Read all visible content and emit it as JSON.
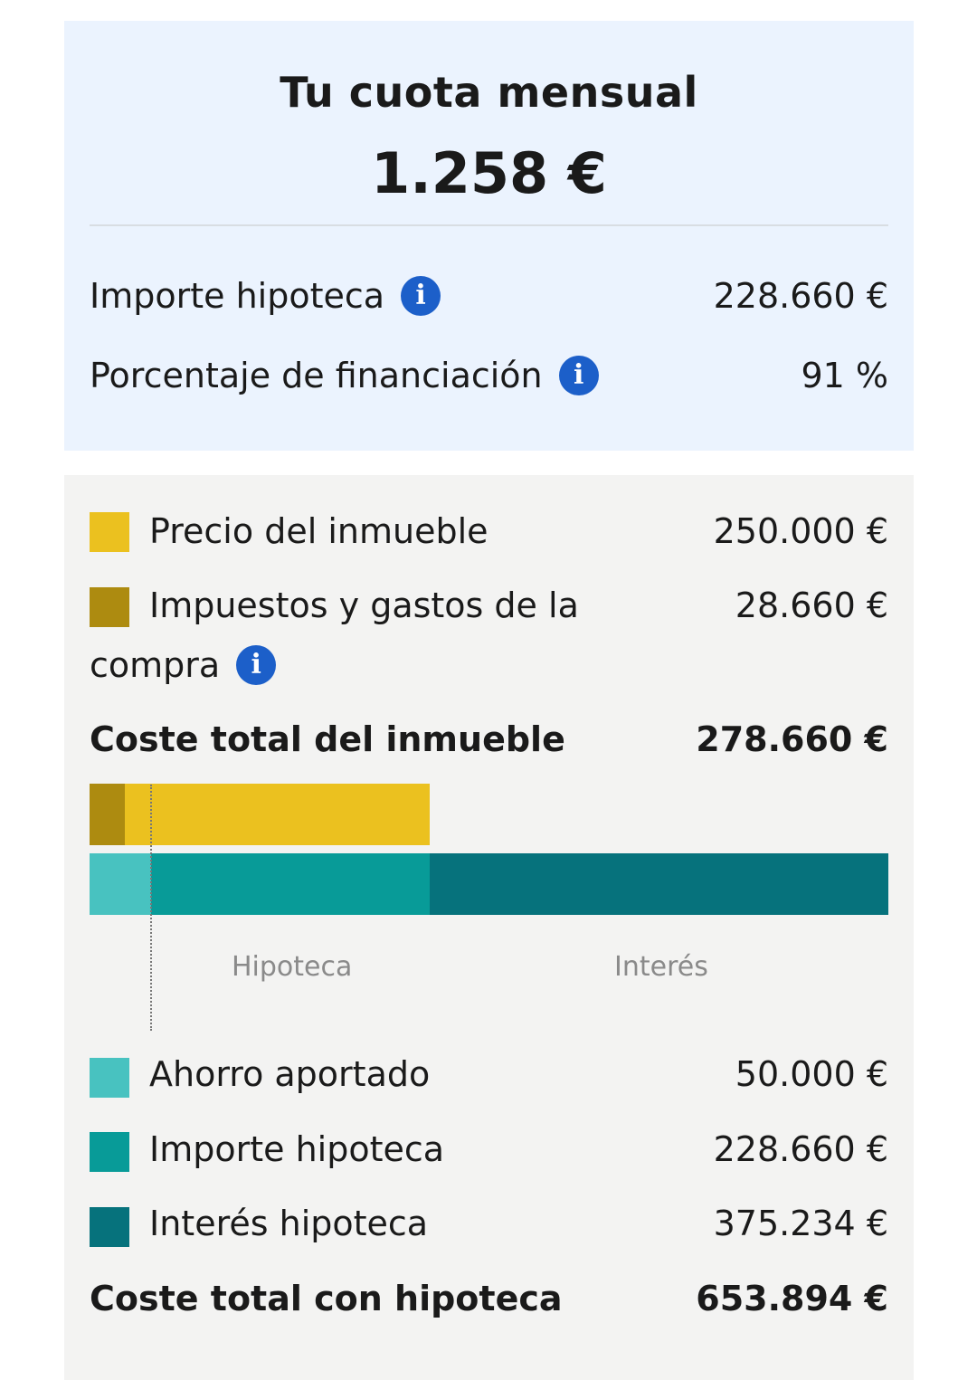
{
  "summary": {
    "title": "Tu cuota mensual",
    "monthly_payment": "1.258 €",
    "rows": [
      {
        "label": "Importe hipoteca",
        "value": "228.660 €"
      },
      {
        "label": "Porcentaje de financiación",
        "value": "91 %"
      }
    ],
    "info_glyph": "i"
  },
  "property": {
    "items": [
      {
        "label": "Precio del inmueble",
        "value": "250.000 €",
        "color": "#ebc11f"
      },
      {
        "label_line1": "Impuestos y gastos de la",
        "label_line2": "compra",
        "value": "28.660 €",
        "color": "#ad8b10"
      }
    ],
    "total_label": "Coste total del inmueble",
    "total_value": "278.660 €"
  },
  "chart_data": {
    "type": "bar",
    "orientation": "horizontal-stacked",
    "series": [
      {
        "name": "Impuestos y gastos de la compra",
        "value": 28660,
        "color": "#ad8b10"
      },
      {
        "name": "Precio del inmueble",
        "value": 250000,
        "color": "#ebc11f"
      },
      {
        "name": "Ahorro aportado",
        "value": 50000,
        "color": "#48c2c0"
      },
      {
        "name": "Importe hipoteca",
        "value": 228660,
        "color": "#089b98"
      },
      {
        "name": "Interés hipoteca",
        "value": 375234,
        "color": "#06727c"
      }
    ],
    "axis_labels": [
      "Hipoteca",
      "Interés"
    ]
  },
  "mortgage": {
    "items": [
      {
        "label": "Ahorro aportado",
        "value": "50.000 €",
        "color": "#48c2c0"
      },
      {
        "label": "Importe hipoteca",
        "value": "228.660 €",
        "color": "#089b98"
      },
      {
        "label": "Interés hipoteca",
        "value": "375.234 €",
        "color": "#06727c"
      }
    ],
    "total_label": "Coste total con hipoteca",
    "total_value": "653.894 €"
  }
}
